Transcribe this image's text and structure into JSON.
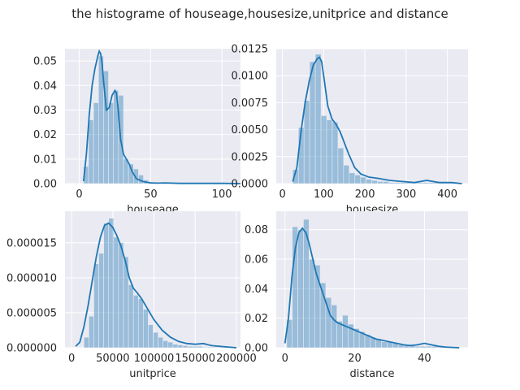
{
  "figure": {
    "title": "the histograme of houseage,housesize,unitprice and distance"
  },
  "chart_data": [
    {
      "type": "bar",
      "subtype": "histogram-with-kde",
      "xlabel": "houseage",
      "ylabel": "",
      "xlim": [
        -10,
        113
      ],
      "ylim": [
        0,
        0.055
      ],
      "xticks": [
        0,
        50,
        100
      ],
      "yticks": [
        0.0,
        0.01,
        0.02,
        0.03,
        0.04,
        0.05
      ],
      "ytick_labels": [
        "0.00",
        "0.01",
        "0.02",
        "0.03",
        "0.04",
        "0.05"
      ],
      "grid": true,
      "bins_start": 3,
      "bin_width": 3.5,
      "values": [
        0.007,
        0.026,
        0.033,
        0.052,
        0.046,
        0.033,
        0.038,
        0.036,
        0.01,
        0.008,
        0.006,
        0.0035,
        0.0015,
        0.0007,
        0.0004,
        0.0002,
        0.0001,
        0.0001,
        0.0001,
        0.0002,
        0.0001,
        0.0001,
        0.0001,
        0.0001,
        0.0001,
        0.0001,
        0.0001,
        0.0001,
        0.0001,
        0.0001
      ],
      "kde": {
        "x": [
          3,
          5,
          7,
          9,
          11,
          13,
          14,
          15,
          16,
          17,
          19,
          21,
          23,
          25,
          26,
          27,
          29,
          31,
          33,
          35,
          37,
          40,
          45,
          50,
          55,
          60,
          65,
          70,
          80,
          90,
          100,
          113
        ],
        "y": [
          0.001,
          0.012,
          0.028,
          0.04,
          0.047,
          0.052,
          0.054,
          0.053,
          0.049,
          0.042,
          0.03,
          0.031,
          0.036,
          0.038,
          0.037,
          0.032,
          0.018,
          0.012,
          0.01,
          0.008,
          0.005,
          0.002,
          0.0008,
          0.0003,
          0.0002,
          0.0003,
          0.0002,
          0.0001,
          0.0001,
          0.0001,
          0.0001,
          0.0
        ]
      }
    },
    {
      "type": "bar",
      "subtype": "histogram-with-kde",
      "xlabel": "housesize",
      "ylabel": "",
      "xlim": [
        -15,
        450
      ],
      "ylim": [
        0,
        0.0125
      ],
      "xticks": [
        0,
        100,
        200,
        300,
        400
      ],
      "yticks": [
        0.0,
        0.0025,
        0.005,
        0.0075,
        0.01,
        0.0125
      ],
      "ytick_labels": [
        "0.0000",
        "0.0025",
        "0.0050",
        "0.0075",
        "0.0100",
        "0.0125"
      ],
      "grid": true,
      "bins_start": 25,
      "bin_width": 13.7,
      "values": [
        0.0013,
        0.0052,
        0.0077,
        0.0113,
        0.012,
        0.0063,
        0.0059,
        0.0057,
        0.0033,
        0.0017,
        0.001,
        0.0008,
        0.0006,
        0.0004,
        0.0003,
        0.0002,
        0.0002,
        0.0001,
        0.0001,
        0.0001,
        0.0001,
        0.0001,
        0.0001,
        0.0001,
        0.0001,
        0.0001,
        0.0001,
        0.0001,
        0.0001,
        0.0001
      ],
      "kde": {
        "x": [
          25,
          35,
          45,
          55,
          65,
          75,
          85,
          90,
          95,
          100,
          110,
          120,
          130,
          140,
          150,
          160,
          175,
          190,
          210,
          230,
          260,
          290,
          320,
          350,
          380,
          410,
          435
        ],
        "y": [
          0.0002,
          0.0015,
          0.0048,
          0.0075,
          0.0095,
          0.011,
          0.0116,
          0.0117,
          0.0113,
          0.01,
          0.0072,
          0.006,
          0.0055,
          0.0048,
          0.0038,
          0.0028,
          0.0015,
          0.0009,
          0.0006,
          0.0005,
          0.0003,
          0.0002,
          0.0001,
          0.0003,
          0.0001,
          0.0001,
          0.0
        ]
      }
    },
    {
      "type": "bar",
      "subtype": "histogram-with-kde",
      "xlabel": "unitprice",
      "ylabel": "",
      "xlim": [
        -8000,
        205000
      ],
      "ylim": [
        0,
        1.95e-05
      ],
      "xticks": [
        0,
        50000,
        100000,
        150000,
        200000
      ],
      "yticks": [
        0.0,
        5e-06,
        1e-05,
        1.5e-05
      ],
      "ytick_labels": [
        "0.000000",
        "0.000005",
        "0.000010",
        "0.000015"
      ],
      "grid": true,
      "bins_start": 15000,
      "bin_width": 6000,
      "values": [
        1.5e-06,
        4.5e-06,
        1.2e-05,
        1.35e-05,
        1.78e-05,
        1.85e-05,
        1.58e-05,
        1.5e-05,
        1.3e-05,
        9e-06,
        7.5e-06,
        7e-06,
        5.5e-06,
        3.3e-06,
        2.2e-06,
        1.5e-06,
        1e-06,
        8e-07,
        5e-07,
        4e-07,
        3e-07,
        2e-07,
        2e-07,
        2e-07,
        1e-07,
        1e-07,
        1e-07,
        1e-07,
        1e-07,
        1e-07
      ],
      "kde": {
        "x": [
          5000,
          10000,
          15000,
          20000,
          25000,
          30000,
          35000,
          40000,
          45000,
          50000,
          55000,
          60000,
          65000,
          70000,
          75000,
          80000,
          85000,
          90000,
          95000,
          100000,
          110000,
          120000,
          130000,
          140000,
          150000,
          160000,
          170000,
          180000,
          190000,
          200000
        ],
        "y": [
          2e-07,
          8e-07,
          3e-06,
          6e-06,
          9.5e-06,
          1.3e-05,
          1.58e-05,
          1.75e-05,
          1.78e-05,
          1.72e-05,
          1.6e-05,
          1.45e-05,
          1.25e-05,
          1e-05,
          8.5e-06,
          7.8e-06,
          7e-06,
          6e-06,
          5e-06,
          4e-06,
          2.5e-06,
          1.5e-06,
          9e-07,
          6e-07,
          5e-07,
          6e-07,
          3e-07,
          2e-07,
          1e-07,
          0.0
        ]
      }
    },
    {
      "type": "bar",
      "subtype": "histogram-with-kde",
      "xlabel": "distance",
      "ylabel": "",
      "xlim": [
        -2.5,
        52.5
      ],
      "ylim": [
        0,
        0.0925
      ],
      "xticks": [
        0,
        20,
        40
      ],
      "yticks": [
        0.0,
        0.02,
        0.04,
        0.06,
        0.08
      ],
      "ytick_labels": [
        "0.00",
        "0.02",
        "0.04",
        "0.06",
        "0.08"
      ],
      "grid": true,
      "bins_start": 0.5,
      "bin_width": 1.6,
      "values": [
        0.019,
        0.082,
        0.08,
        0.087,
        0.06,
        0.056,
        0.044,
        0.034,
        0.029,
        0.018,
        0.022,
        0.016,
        0.013,
        0.011,
        0.009,
        0.007,
        0.006,
        0.004,
        0.004,
        0.003,
        0.002,
        0.002,
        0.002,
        0.001,
        0.001,
        0.001,
        0.001,
        0.0005,
        0.0005,
        0.0005
      ],
      "kde": {
        "x": [
          0,
          1,
          2,
          3,
          4,
          5,
          6,
          7,
          8,
          9,
          10,
          11,
          12,
          13,
          14,
          15,
          16,
          18,
          20,
          22,
          24,
          26,
          28,
          30,
          32,
          34,
          36,
          38,
          40,
          42,
          44,
          46,
          48,
          50
        ],
        "y": [
          0.003,
          0.02,
          0.048,
          0.068,
          0.078,
          0.081,
          0.078,
          0.07,
          0.06,
          0.05,
          0.043,
          0.036,
          0.029,
          0.022,
          0.019,
          0.017,
          0.016,
          0.014,
          0.012,
          0.01,
          0.008,
          0.006,
          0.005,
          0.004,
          0.003,
          0.002,
          0.0015,
          0.002,
          0.003,
          0.002,
          0.001,
          0.0005,
          0.0002,
          0.0
        ]
      }
    }
  ]
}
